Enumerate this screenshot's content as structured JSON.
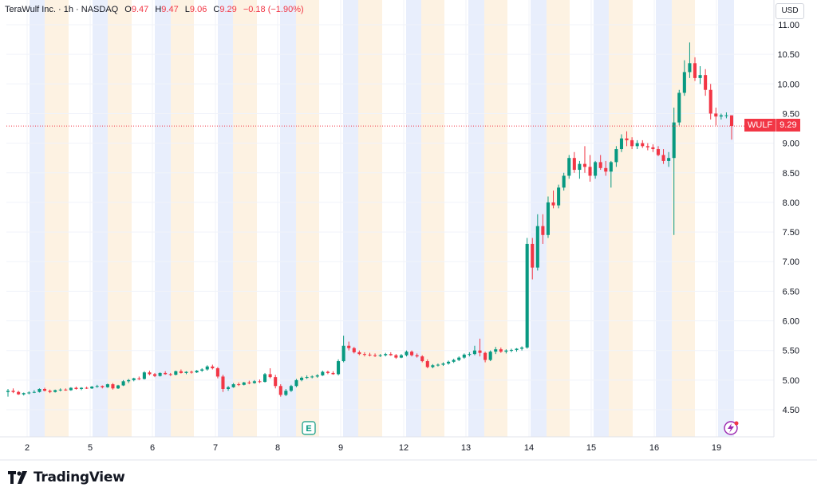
{
  "header": {
    "title": "TeraWulf Inc. · 1h · NASDAQ",
    "open_label": "O",
    "open": "9.47",
    "high_label": "H",
    "high": "9.47",
    "low_label": "L",
    "low": "9.06",
    "close_label": "C",
    "close": "9.29",
    "change": "−0.18 (−1.90%)"
  },
  "currency_button": "USD",
  "price_tag": {
    "symbol": "WULF",
    "price": "9.29"
  },
  "brand": "TradingView",
  "colors": {
    "up": "#089981",
    "down": "#f23645",
    "pre_market": "#e8eefc",
    "post_market": "#fdf2e2",
    "grid": "#f0f3fa"
  },
  "icons": {
    "earnings_marker": "E",
    "flash_marker": "lightning-icon"
  },
  "chart_data": {
    "type": "candlestick",
    "symbol": "WULF",
    "interval": "1h",
    "ylim": [
      4.3,
      11.1
    ],
    "y_ticks": [
      "4.50",
      "5.00",
      "5.50",
      "6.00",
      "6.50",
      "7.00",
      "7.50",
      "8.00",
      "8.50",
      "9.00",
      "9.50",
      "10.00",
      "10.50",
      "11.00"
    ],
    "x_ticks": [
      "2",
      "5",
      "6",
      "7",
      "8",
      "9",
      "12",
      "13",
      "14",
      "15",
      "16",
      "19"
    ],
    "last_price": 9.29,
    "candles": [
      [
        4.8,
        4.85,
        4.72,
        4.82
      ],
      [
        4.82,
        4.86,
        4.78,
        4.8
      ],
      [
        4.8,
        4.82,
        4.75,
        4.76
      ],
      [
        4.76,
        4.79,
        4.74,
        4.78
      ],
      [
        4.78,
        4.81,
        4.76,
        4.79
      ],
      [
        4.79,
        4.83,
        4.78,
        4.8
      ],
      [
        4.8,
        4.86,
        4.79,
        4.85
      ],
      [
        4.85,
        4.87,
        4.81,
        4.82
      ],
      [
        4.82,
        4.84,
        4.78,
        4.8
      ],
      [
        4.8,
        4.84,
        4.79,
        4.83
      ],
      [
        4.83,
        4.86,
        4.81,
        4.84
      ],
      [
        4.84,
        4.86,
        4.82,
        4.83
      ],
      [
        4.83,
        4.88,
        4.82,
        4.87
      ],
      [
        4.87,
        4.89,
        4.84,
        4.85
      ],
      [
        4.85,
        4.88,
        4.83,
        4.87
      ],
      [
        4.87,
        4.89,
        4.85,
        4.86
      ],
      [
        4.86,
        4.9,
        4.85,
        4.89
      ],
      [
        4.89,
        4.92,
        4.87,
        4.9
      ],
      [
        4.9,
        4.91,
        4.86,
        4.88
      ],
      [
        4.88,
        4.94,
        4.87,
        4.93
      ],
      [
        4.93,
        4.95,
        4.84,
        4.86
      ],
      [
        4.86,
        4.92,
        4.85,
        4.91
      ],
      [
        4.91,
        5.0,
        4.9,
        4.98
      ],
      [
        4.98,
        5.02,
        4.95,
        5.0
      ],
      [
        5.0,
        5.04,
        4.98,
        5.03
      ],
      [
        5.03,
        5.06,
        5.0,
        5.02
      ],
      [
        5.02,
        5.15,
        5.01,
        5.13
      ],
      [
        5.13,
        5.16,
        5.08,
        5.1
      ],
      [
        5.1,
        5.12,
        5.05,
        5.07
      ],
      [
        5.07,
        5.13,
        5.06,
        5.12
      ],
      [
        5.12,
        5.15,
        5.09,
        5.1
      ],
      [
        5.1,
        5.12,
        5.07,
        5.09
      ],
      [
        5.09,
        5.16,
        5.08,
        5.15
      ],
      [
        5.15,
        5.18,
        5.11,
        5.12
      ],
      [
        5.12,
        5.15,
        5.1,
        5.14
      ],
      [
        5.14,
        5.16,
        5.11,
        5.13
      ],
      [
        5.13,
        5.17,
        5.12,
        5.16
      ],
      [
        5.16,
        5.2,
        5.14,
        5.18
      ],
      [
        5.18,
        5.25,
        5.16,
        5.23
      ],
      [
        5.23,
        5.26,
        5.18,
        5.2
      ],
      [
        5.2,
        5.22,
        5.03,
        5.06
      ],
      [
        5.06,
        5.09,
        4.8,
        4.85
      ],
      [
        4.85,
        4.9,
        4.82,
        4.88
      ],
      [
        4.88,
        4.95,
        4.87,
        4.93
      ],
      [
        4.93,
        4.96,
        4.9,
        4.92
      ],
      [
        4.92,
        4.97,
        4.91,
        4.96
      ],
      [
        4.96,
        4.99,
        4.93,
        4.95
      ],
      [
        4.95,
        5.0,
        4.94,
        4.98
      ],
      [
        4.98,
        5.01,
        4.95,
        4.97
      ],
      [
        4.97,
        5.12,
        4.96,
        5.1
      ],
      [
        5.1,
        5.2,
        5.03,
        5.05
      ],
      [
        5.05,
        5.09,
        4.86,
        4.9
      ],
      [
        4.9,
        4.93,
        4.72,
        4.75
      ],
      [
        4.75,
        4.85,
        4.73,
        4.82
      ],
      [
        4.82,
        4.92,
        4.8,
        4.9
      ],
      [
        4.9,
        5.02,
        4.88,
        5.0
      ],
      [
        5.0,
        5.06,
        4.98,
        5.04
      ],
      [
        5.04,
        5.08,
        5.02,
        5.05
      ],
      [
        5.05,
        5.08,
        5.03,
        5.06
      ],
      [
        5.06,
        5.1,
        5.04,
        5.08
      ],
      [
        5.08,
        5.16,
        5.07,
        5.14
      ],
      [
        5.14,
        5.16,
        5.1,
        5.12
      ],
      [
        5.12,
        5.15,
        5.09,
        5.1
      ],
      [
        5.1,
        5.35,
        5.08,
        5.32
      ],
      [
        5.32,
        5.75,
        5.3,
        5.58
      ],
      [
        5.58,
        5.65,
        5.5,
        5.54
      ],
      [
        5.54,
        5.56,
        5.45,
        5.47
      ],
      [
        5.47,
        5.5,
        5.42,
        5.44
      ],
      [
        5.44,
        5.47,
        5.4,
        5.43
      ],
      [
        5.43,
        5.46,
        5.4,
        5.42
      ],
      [
        5.42,
        5.45,
        5.39,
        5.41
      ],
      [
        5.41,
        5.44,
        5.39,
        5.42
      ],
      [
        5.42,
        5.46,
        5.4,
        5.44
      ],
      [
        5.44,
        5.47,
        5.41,
        5.42
      ],
      [
        5.42,
        5.44,
        5.36,
        5.38
      ],
      [
        5.38,
        5.44,
        5.37,
        5.42
      ],
      [
        5.42,
        5.5,
        5.4,
        5.48
      ],
      [
        5.48,
        5.5,
        5.4,
        5.42
      ],
      [
        5.42,
        5.45,
        5.38,
        5.4
      ],
      [
        5.4,
        5.42,
        5.3,
        5.32
      ],
      [
        5.32,
        5.35,
        5.2,
        5.22
      ],
      [
        5.22,
        5.27,
        5.2,
        5.25
      ],
      [
        5.25,
        5.28,
        5.23,
        5.26
      ],
      [
        5.26,
        5.3,
        5.24,
        5.28
      ],
      [
        5.28,
        5.33,
        5.26,
        5.31
      ],
      [
        5.31,
        5.36,
        5.29,
        5.34
      ],
      [
        5.34,
        5.4,
        5.32,
        5.38
      ],
      [
        5.38,
        5.45,
        5.36,
        5.43
      ],
      [
        5.43,
        5.47,
        5.4,
        5.44
      ],
      [
        5.44,
        5.58,
        5.42,
        5.5
      ],
      [
        5.5,
        5.7,
        5.4,
        5.46
      ],
      [
        5.46,
        5.48,
        5.3,
        5.34
      ],
      [
        5.34,
        5.5,
        5.32,
        5.48
      ],
      [
        5.48,
        5.56,
        5.44,
        5.52
      ],
      [
        5.52,
        5.55,
        5.46,
        5.48
      ],
      [
        5.48,
        5.52,
        5.45,
        5.5
      ],
      [
        5.5,
        5.53,
        5.47,
        5.51
      ],
      [
        5.51,
        5.54,
        5.48,
        5.53
      ],
      [
        5.53,
        5.57,
        5.5,
        5.55
      ],
      [
        5.55,
        7.4,
        5.53,
        7.3
      ],
      [
        7.3,
        7.4,
        6.7,
        6.9
      ],
      [
        6.9,
        7.8,
        6.85,
        7.6
      ],
      [
        7.6,
        7.8,
        7.3,
        7.45
      ],
      [
        7.45,
        8.1,
        7.4,
        8.0
      ],
      [
        8.0,
        8.2,
        7.9,
        7.95
      ],
      [
        7.95,
        8.3,
        7.9,
        8.25
      ],
      [
        8.25,
        8.5,
        8.2,
        8.45
      ],
      [
        8.45,
        8.8,
        8.4,
        8.75
      ],
      [
        8.75,
        8.85,
        8.5,
        8.55
      ],
      [
        8.55,
        8.7,
        8.4,
        8.65
      ],
      [
        8.65,
        8.95,
        8.5,
        8.6
      ],
      [
        8.6,
        8.8,
        8.35,
        8.45
      ],
      [
        8.45,
        8.7,
        8.4,
        8.68
      ],
      [
        8.68,
        8.8,
        8.55,
        8.58
      ],
      [
        8.58,
        8.7,
        8.45,
        8.52
      ],
      [
        8.52,
        8.7,
        8.25,
        8.68
      ],
      [
        8.68,
        8.95,
        8.6,
        8.9
      ],
      [
        8.9,
        9.15,
        8.85,
        9.08
      ],
      [
        9.08,
        9.2,
        8.95,
        9.05
      ],
      [
        9.05,
        9.1,
        8.9,
        8.95
      ],
      [
        8.95,
        9.05,
        8.9,
        9.0
      ],
      [
        9.0,
        9.05,
        8.92,
        8.95
      ],
      [
        8.95,
        9.0,
        8.88,
        8.93
      ],
      [
        8.93,
        8.98,
        8.85,
        8.9
      ],
      [
        8.9,
        8.95,
        8.78,
        8.8
      ],
      [
        8.8,
        8.9,
        8.65,
        8.7
      ],
      [
        8.7,
        8.85,
        8.6,
        8.75
      ],
      [
        8.75,
        9.6,
        7.45,
        9.35
      ],
      [
        9.35,
        9.9,
        9.3,
        9.85
      ],
      [
        9.85,
        10.4,
        9.8,
        10.2
      ],
      [
        10.2,
        10.7,
        10.1,
        10.35
      ],
      [
        10.35,
        10.45,
        10.05,
        10.1
      ],
      [
        10.1,
        10.3,
        10.0,
        10.15
      ],
      [
        10.15,
        10.25,
        9.8,
        9.9
      ],
      [
        9.9,
        10.0,
        9.4,
        9.5
      ],
      [
        9.5,
        9.6,
        9.3,
        9.45
      ],
      [
        9.45,
        9.5,
        9.4,
        9.47
      ],
      [
        9.47,
        9.52,
        9.42,
        9.47
      ],
      [
        9.47,
        9.47,
        9.06,
        9.29
      ]
    ]
  }
}
